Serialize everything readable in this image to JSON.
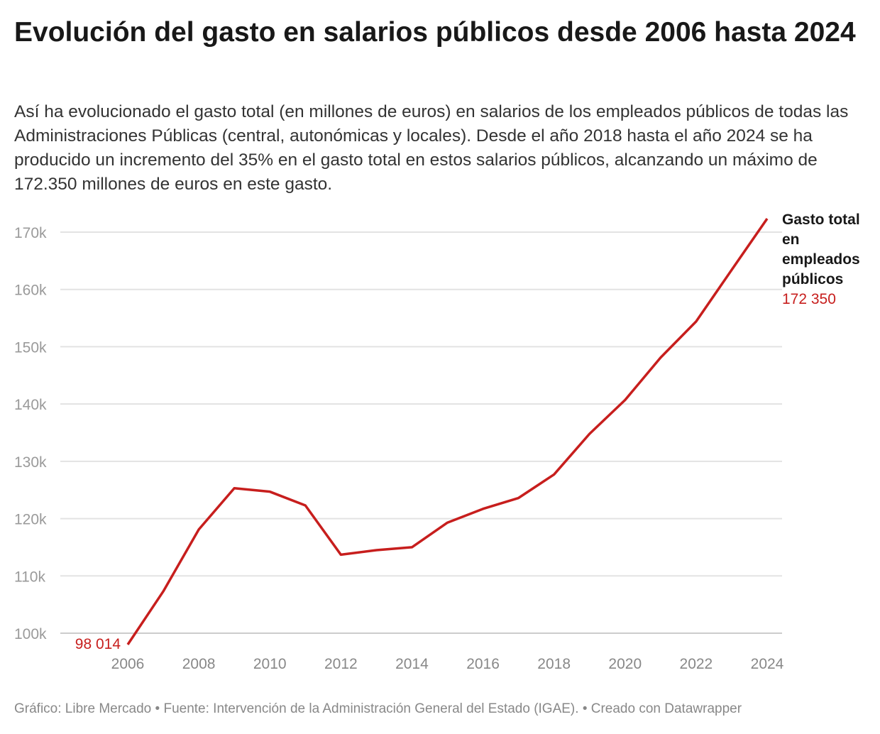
{
  "header": {
    "title": "Evolución del gasto en salarios públicos desde 2006 hasta 2024",
    "description": "Así ha evolucionado el gasto total (en millones de euros) en salarios de los empleados públicos de todas las Administraciones Públicas (central, autonómicas y locales). Desde el año 2018 hasta el año 2024 se ha producido un incremento del 35% en el gasto total en estos salarios públicos, alcanzando un máximo de 172.350 millones de euros en este gasto."
  },
  "footer": "Gráfico: Libre Mercado • Fuente: Intervención de la Administración General del Estado (IGAE). • Creado con Datawrapper",
  "chart_data": {
    "type": "line",
    "x": [
      2006,
      2007,
      2008,
      2009,
      2010,
      2011,
      2012,
      2013,
      2014,
      2015,
      2016,
      2017,
      2018,
      2019,
      2020,
      2021,
      2022,
      2023,
      2024
    ],
    "series": [
      {
        "name": "Gasto total en empleados públicos",
        "color": "#c71e1d",
        "values": [
          98014,
          107300,
          118100,
          125300,
          124700,
          122300,
          113700,
          114500,
          115000,
          119300,
          121700,
          123600,
          127700,
          134800,
          140700,
          148100,
          154400,
          163400,
          172350
        ]
      }
    ],
    "xlim": [
      2006,
      2024
    ],
    "ylim": [
      100000,
      170000
    ],
    "x_ticks": [
      "2006",
      "2008",
      "2010",
      "2012",
      "2014",
      "2016",
      "2018",
      "2020",
      "2022",
      "2024"
    ],
    "y_ticks": [
      {
        "value": 100000,
        "label": "100k"
      },
      {
        "value": 110000,
        "label": "110k"
      },
      {
        "value": 120000,
        "label": "120k"
      },
      {
        "value": 130000,
        "label": "130k"
      },
      {
        "value": 140000,
        "label": "140k"
      },
      {
        "value": 150000,
        "label": "150k"
      },
      {
        "value": 160000,
        "label": "160k"
      },
      {
        "value": 170000,
        "label": "170k"
      }
    ],
    "start_label": "98 014",
    "end_label": "172 350",
    "series_label_lines": [
      "Gasto total",
      "en",
      "empleados",
      "públicos"
    ],
    "grid": true
  }
}
